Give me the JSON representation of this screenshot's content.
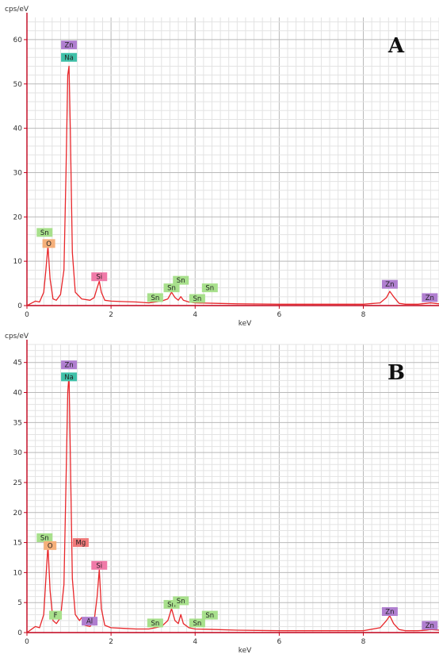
{
  "chart_data": [
    {
      "type": "line",
      "panel_label": "A",
      "ylabel": "cps/eV",
      "xlabel": "keV",
      "xlim": [
        0,
        9.8
      ],
      "ylim": [
        0,
        65
      ],
      "xticks": [
        "0",
        "2",
        "4",
        "6",
        "8"
      ],
      "yticks": [
        "0",
        "10",
        "20",
        "30",
        "40",
        "50",
        "60"
      ],
      "grid": true,
      "series": [
        {
          "x": [
            0.0,
            0.1,
            0.2,
            0.3,
            0.4,
            0.45,
            0.5,
            0.55,
            0.62,
            0.7,
            0.8,
            0.88,
            0.93,
            0.97,
            1.0,
            1.03,
            1.08,
            1.15,
            1.3,
            1.5,
            1.6,
            1.67,
            1.72,
            1.77,
            1.85,
            2.0,
            2.3,
            2.6,
            2.9,
            3.2,
            3.35,
            3.44,
            3.52,
            3.6,
            3.66,
            3.72,
            3.85,
            4.0,
            4.5,
            5.0,
            6.0,
            7.0,
            8.0,
            8.4,
            8.55,
            8.63,
            8.72,
            8.85,
            9.0,
            9.3,
            9.5,
            9.6,
            9.8
          ],
          "y": [
            0.0,
            0.5,
            1.0,
            0.8,
            3.0,
            8.0,
            13.5,
            6.0,
            1.5,
            1.2,
            2.5,
            8.0,
            30.0,
            52.0,
            54.0,
            40.0,
            12.0,
            3.0,
            1.5,
            1.2,
            1.8,
            4.0,
            5.5,
            3.0,
            1.2,
            1.0,
            0.9,
            0.8,
            0.6,
            1.0,
            1.5,
            3.0,
            1.8,
            1.2,
            2.0,
            1.2,
            0.8,
            0.6,
            0.5,
            0.4,
            0.3,
            0.3,
            0.3,
            0.6,
            1.8,
            3.2,
            2.0,
            0.5,
            0.3,
            0.3,
            0.5,
            0.6,
            0.4
          ]
        }
      ],
      "peak_labels": [
        {
          "text": "Zn",
          "color": "#b07fd0",
          "x": 1.0,
          "y": 58.8
        },
        {
          "text": "Na",
          "color": "#3fc0a8",
          "x": 1.0,
          "y": 56.0
        },
        {
          "text": "Sn",
          "color": "#a8e08c",
          "x": 0.42,
          "y": 16.5
        },
        {
          "text": "O",
          "color": "#f5b07a",
          "x": 0.52,
          "y": 14.0
        },
        {
          "text": "Si",
          "color": "#f07aa8",
          "x": 1.72,
          "y": 6.5
        },
        {
          "text": "Sn",
          "color": "#a8e08c",
          "x": 3.05,
          "y": 1.8
        },
        {
          "text": "Sn",
          "color": "#a8e08c",
          "x": 3.44,
          "y": 4.0
        },
        {
          "text": "Sn",
          "color": "#a8e08c",
          "x": 3.66,
          "y": 5.7
        },
        {
          "text": "Sn",
          "color": "#a8e08c",
          "x": 4.05,
          "y": 1.6
        },
        {
          "text": "Sn",
          "color": "#a8e08c",
          "x": 4.35,
          "y": 4.0
        },
        {
          "text": "Zn",
          "color": "#b07fd0",
          "x": 8.63,
          "y": 4.8
        },
        {
          "text": "Zn",
          "color": "#b07fd0",
          "x": 9.58,
          "y": 1.8
        }
      ]
    },
    {
      "type": "line",
      "panel_label": "B",
      "ylabel": "cps/eV",
      "xlabel": "keV",
      "xlim": [
        0,
        9.8
      ],
      "ylim": [
        0,
        48
      ],
      "xticks": [
        "0",
        "2",
        "4",
        "6",
        "8"
      ],
      "yticks": [
        "0",
        "5",
        "10",
        "15",
        "20",
        "25",
        "30",
        "35",
        "40",
        "45"
      ],
      "grid": true,
      "series": [
        {
          "x": [
            0.0,
            0.1,
            0.2,
            0.3,
            0.4,
            0.45,
            0.5,
            0.55,
            0.62,
            0.7,
            0.8,
            0.88,
            0.93,
            0.97,
            1.0,
            1.03,
            1.08,
            1.15,
            1.25,
            1.3,
            1.38,
            1.5,
            1.6,
            1.67,
            1.72,
            1.77,
            1.85,
            2.0,
            2.3,
            2.6,
            2.9,
            3.2,
            3.35,
            3.44,
            3.52,
            3.6,
            3.66,
            3.72,
            3.85,
            4.0,
            4.5,
            5.0,
            6.0,
            7.0,
            8.0,
            8.4,
            8.55,
            8.63,
            8.72,
            8.85,
            9.0,
            9.3,
            9.5,
            9.6,
            9.8
          ],
          "y": [
            0.0,
            0.5,
            1.0,
            0.8,
            3.0,
            9.0,
            14.5,
            7.0,
            2.0,
            1.5,
            2.5,
            8.0,
            25.0,
            40.0,
            43.0,
            30.0,
            9.0,
            3.0,
            2.0,
            2.5,
            1.2,
            1.0,
            2.0,
            6.0,
            10.5,
            4.0,
            1.2,
            0.8,
            0.7,
            0.6,
            0.6,
            1.0,
            2.0,
            4.0,
            2.0,
            1.5,
            3.0,
            1.5,
            0.8,
            0.6,
            0.5,
            0.4,
            0.3,
            0.3,
            0.3,
            0.8,
            2.0,
            2.8,
            1.5,
            0.5,
            0.3,
            0.3,
            0.4,
            0.5,
            0.4
          ]
        }
      ],
      "peak_labels": [
        {
          "text": "Zn",
          "color": "#b07fd0",
          "x": 1.0,
          "y": 44.6
        },
        {
          "text": "Na",
          "color": "#3fc0a8",
          "x": 1.0,
          "y": 42.6
        },
        {
          "text": "Sn",
          "color": "#a8e08c",
          "x": 0.42,
          "y": 15.8
        },
        {
          "text": "O",
          "color": "#f5b07a",
          "x": 0.55,
          "y": 14.5
        },
        {
          "text": "Mg",
          "color": "#f07a7a",
          "x": 1.28,
          "y": 15.0
        },
        {
          "text": "Si",
          "color": "#f07aa8",
          "x": 1.72,
          "y": 11.2
        },
        {
          "text": "F",
          "color": "#a8e08c",
          "x": 0.68,
          "y": 2.9
        },
        {
          "text": "Al",
          "color": "#b07fd0",
          "x": 1.49,
          "y": 1.9
        },
        {
          "text": "Sn",
          "color": "#a8e08c",
          "x": 3.05,
          "y": 1.6
        },
        {
          "text": "Sn",
          "color": "#a8e08c",
          "x": 3.44,
          "y": 4.7
        },
        {
          "text": "Sn",
          "color": "#a8e08c",
          "x": 3.66,
          "y": 5.3
        },
        {
          "text": "Sn",
          "color": "#a8e08c",
          "x": 4.05,
          "y": 1.6
        },
        {
          "text": "Sn",
          "color": "#a8e08c",
          "x": 4.35,
          "y": 2.9
        },
        {
          "text": "Zn",
          "color": "#b07fd0",
          "x": 8.63,
          "y": 3.5
        },
        {
          "text": "Zn",
          "color": "#b07fd0",
          "x": 9.58,
          "y": 1.2
        }
      ]
    }
  ],
  "colors": {
    "line": "#e8262a",
    "axis": "#c0001a",
    "grid_minor": "#e3e3e3",
    "grid_major": "#b9b9b9",
    "tick_text": "#333333"
  }
}
